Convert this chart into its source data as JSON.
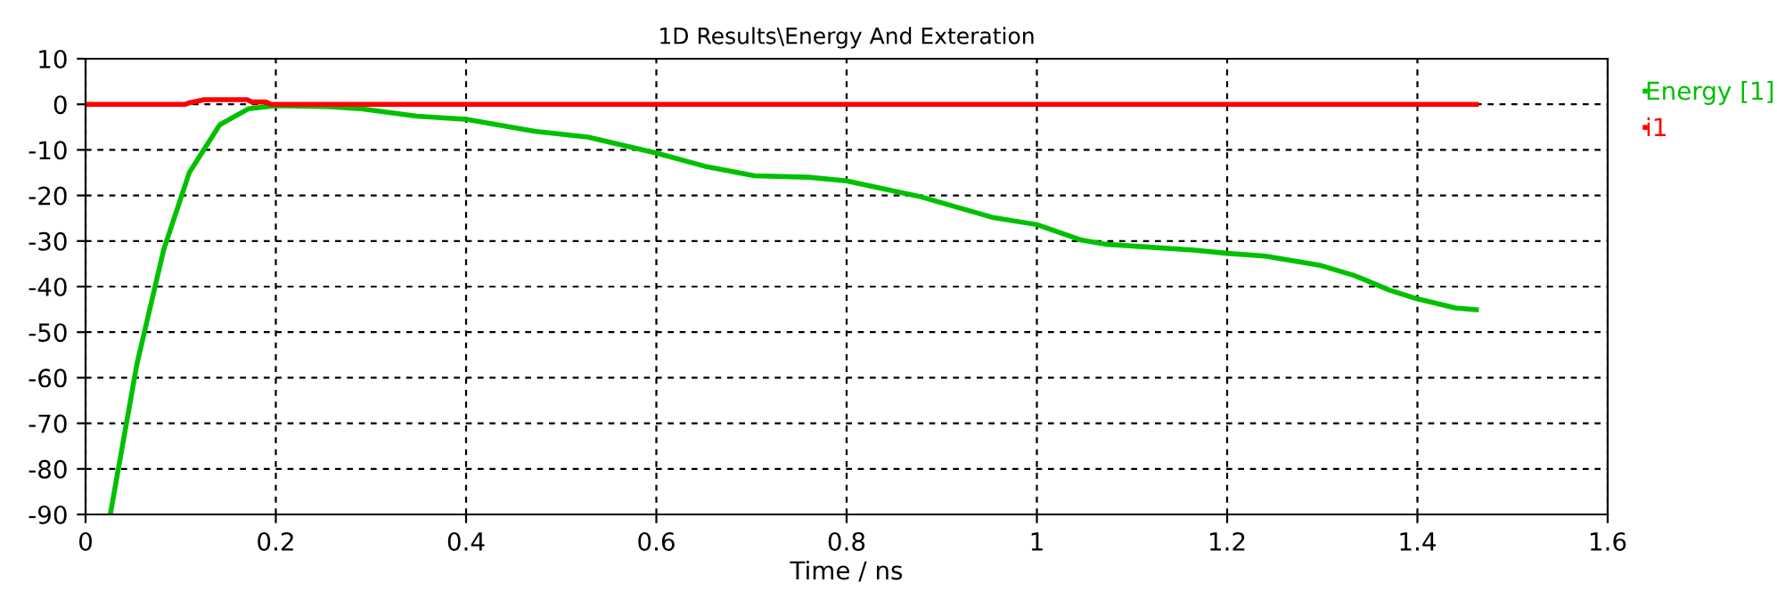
{
  "chart_data": {
    "type": "line",
    "title": "1D Results\\Energy And Exteration",
    "xlabel": "Time / ns",
    "xlim": [
      0,
      1.6
    ],
    "ylim": [
      -90,
      10
    ],
    "xticks": [
      0,
      0.2,
      0.4,
      0.6,
      0.8,
      1,
      1.2,
      1.4,
      1.6
    ],
    "yticks": [
      -90,
      -80,
      -70,
      -60,
      -50,
      -40,
      -30,
      -20,
      -10,
      0,
      10
    ],
    "grid": true,
    "legend": "top right",
    "line_style": "solid",
    "marker": "none",
    "series": [
      {
        "name": "Energy [1]",
        "color": "#00c000",
        "x": [
          0.026,
          0.054,
          0.082,
          0.109,
          0.141,
          0.171,
          0.2,
          0.254,
          0.29,
          0.348,
          0.4,
          0.472,
          0.528,
          0.6,
          0.653,
          0.703,
          0.76,
          0.8,
          0.878,
          0.953,
          1.0,
          1.047,
          1.072,
          1.165,
          1.2,
          1.24,
          1.297,
          1.334,
          1.371,
          1.4,
          1.44,
          1.462
        ],
        "values": [
          -90,
          -57,
          -32,
          -15,
          -4.5,
          -1,
          -0.3,
          -0.5,
          -1,
          -2.6,
          -3.3,
          -5.9,
          -7.2,
          -10.7,
          -13.7,
          -15.7,
          -16,
          -16.8,
          -20.3,
          -24.8,
          -26.4,
          -29.8,
          -30.7,
          -32,
          -32.7,
          -33.3,
          -35.3,
          -37.6,
          -40.8,
          -42.7,
          -44.7,
          -45.1
        ]
      },
      {
        "name": "i1",
        "color": "#ff0000",
        "x": [
          0,
          0.105,
          0.11,
          0.125,
          0.17,
          0.175,
          0.19,
          0.195,
          1.462
        ],
        "values": [
          0,
          0,
          0.4,
          1,
          1,
          0.5,
          0.5,
          0,
          0
        ]
      }
    ]
  }
}
